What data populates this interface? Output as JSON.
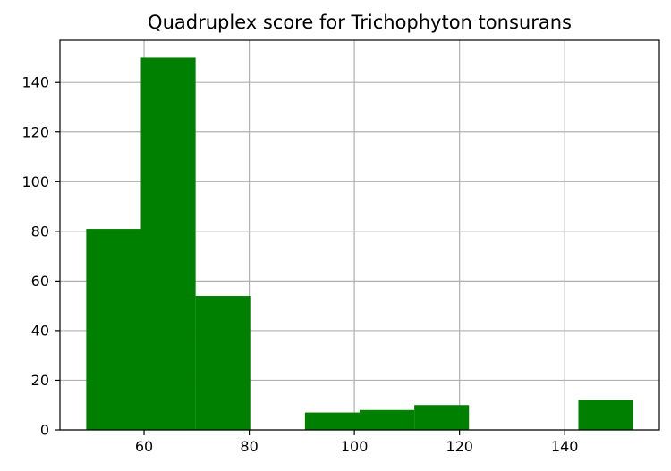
{
  "chart_data": {
    "type": "bar",
    "title": "Quadruplex score for Trichophyton tonsurans",
    "xlabel": "",
    "ylabel": "",
    "xlim": [
      44,
      158
    ],
    "ylim": [
      0,
      157
    ],
    "xticks": [
      60,
      80,
      100,
      120,
      140
    ],
    "yticks": [
      0,
      20,
      40,
      60,
      80,
      100,
      120,
      140
    ],
    "grid": true,
    "bar_color": "#008000",
    "bins": [
      {
        "x0": 49.0,
        "x1": 59.4,
        "value": 81
      },
      {
        "x0": 59.4,
        "x1": 69.8,
        "value": 150
      },
      {
        "x0": 69.8,
        "x1": 80.2,
        "value": 54
      },
      {
        "x0": 80.2,
        "x1": 90.6,
        "value": 0
      },
      {
        "x0": 90.6,
        "x1": 101.0,
        "value": 7
      },
      {
        "x0": 101.0,
        "x1": 111.4,
        "value": 8
      },
      {
        "x0": 111.4,
        "x1": 121.8,
        "value": 10
      },
      {
        "x0": 121.8,
        "x1": 132.2,
        "value": 0
      },
      {
        "x0": 132.2,
        "x1": 142.6,
        "value": 0
      },
      {
        "x0": 142.6,
        "x1": 153.0,
        "value": 12
      }
    ]
  }
}
